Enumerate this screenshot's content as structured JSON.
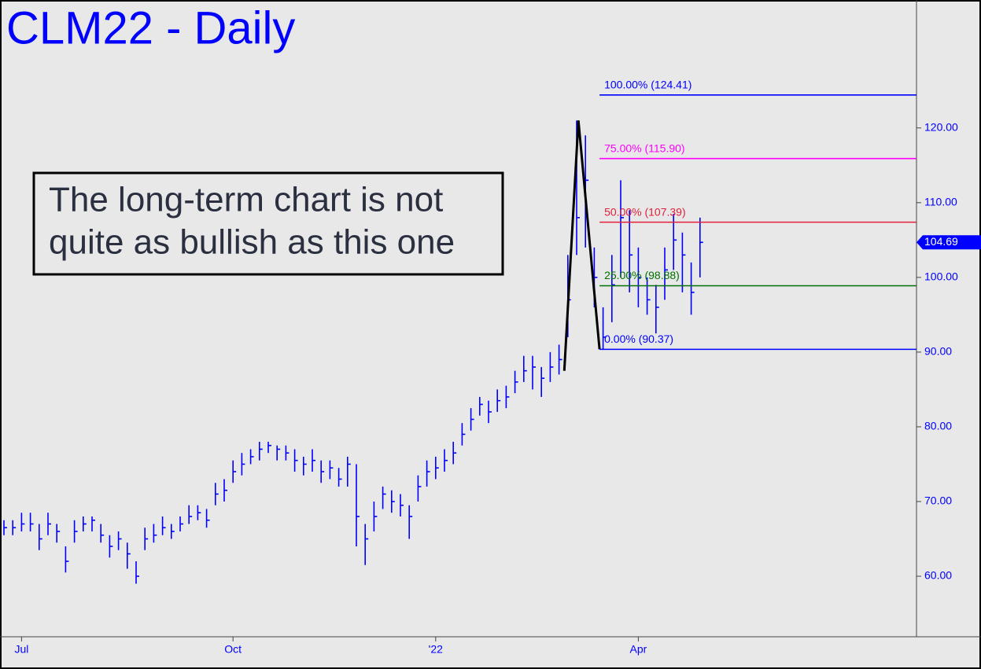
{
  "chart_data": {
    "type": "ohlc",
    "title": "CLM22 - Daily",
    "annotation": [
      "The long-term chart is not",
      "quite as bullish as this one"
    ],
    "categories": [
      null,
      null,
      "Jul",
      null,
      null,
      null,
      null,
      null,
      null,
      null,
      null,
      null,
      null,
      null,
      null,
      null,
      null,
      null,
      null,
      null,
      null,
      null,
      null,
      null,
      null,
      null,
      "Oct",
      null,
      null,
      null,
      null,
      null,
      null,
      null,
      null,
      null,
      null,
      null,
      null,
      null,
      null,
      null,
      null,
      null,
      null,
      null,
      null,
      null,
      null,
      "'22",
      null,
      null,
      null,
      null,
      null,
      null,
      null,
      null,
      null,
      null,
      null,
      null,
      null,
      null,
      null,
      null,
      null,
      null,
      null,
      null,
      null,
      null,
      "Apr",
      null,
      null,
      null,
      null,
      null,
      null,
      null
    ],
    "high": [
      67.5,
      67.5,
      68.5,
      68.5,
      67,
      68.5,
      67,
      64,
      67.5,
      68,
      68,
      67,
      65.5,
      66,
      64.5,
      62,
      66.5,
      67,
      68,
      67,
      68,
      69.5,
      69.5,
      69,
      72.5,
      73,
      75.5,
      76.5,
      77,
      78,
      78,
      77.5,
      77.5,
      77,
      76,
      77,
      75.5,
      75.5,
      74.5,
      76,
      75,
      67,
      70,
      72,
      71.5,
      71,
      69.5,
      73.5,
      75.5,
      76,
      77,
      78,
      80.5,
      82.5,
      84,
      83.5,
      85,
      85.5,
      87.5,
      89.5,
      89.5,
      88,
      90,
      91,
      103,
      121,
      119,
      104,
      96,
      103,
      113,
      109,
      104,
      100,
      99,
      104,
      108.5,
      106,
      102,
      108
    ],
    "low": [
      65.5,
      65.5,
      66,
      66,
      63.5,
      65.5,
      64.5,
      60.5,
      64.5,
      66,
      66,
      64.5,
      62.5,
      63.5,
      61,
      59,
      63.5,
      64.5,
      65.5,
      65,
      66,
      67,
      67.5,
      66.5,
      69.5,
      70,
      72.5,
      73.5,
      75,
      75.5,
      76.5,
      75.5,
      75.5,
      74,
      73.5,
      74,
      72.5,
      73,
      72,
      72,
      64,
      61.5,
      66,
      69,
      68.5,
      68,
      65,
      70,
      72,
      73,
      74,
      75,
      77.5,
      79.5,
      81.5,
      80.5,
      82,
      82.5,
      84.5,
      86,
      85,
      84,
      86,
      87,
      92,
      103,
      104,
      96,
      90.4,
      94,
      100,
      98,
      96,
      95,
      92.5,
      97,
      101,
      98,
      95,
      100
    ],
    "close": [
      66.5,
      66.5,
      67,
      67,
      65,
      67,
      66,
      62,
      66,
      67,
      67.5,
      65.5,
      64,
      65,
      63,
      60,
      65,
      65.5,
      66.5,
      66,
      67,
      68,
      68.5,
      67.5,
      71,
      71.5,
      74,
      75,
      76,
      77,
      77.5,
      77,
      76.5,
      75.5,
      75,
      75.5,
      74,
      74.5,
      73,
      75,
      68,
      65,
      68,
      71,
      70,
      69.5,
      68,
      72,
      74,
      74.5,
      75.5,
      76.5,
      79,
      81,
      83,
      82,
      83.5,
      84,
      86,
      87.5,
      88,
      86.5,
      88,
      89,
      97,
      108,
      113,
      100,
      92,
      99,
      108,
      103,
      100,
      97,
      96,
      101,
      105,
      103,
      98,
      104.69
    ],
    "color": "#0000ff",
    "ylim": [
      51.9,
      136.6
    ],
    "yticks": [
      {
        "value": 60,
        "label": "60.00"
      },
      {
        "value": 70,
        "label": "70.00"
      },
      {
        "value": 80,
        "label": "80.00"
      },
      {
        "value": 90,
        "label": "90.00"
      },
      {
        "value": 100,
        "label": "100.00"
      },
      {
        "value": 110,
        "label": "110.00"
      },
      {
        "value": 120,
        "label": "120.00"
      }
    ],
    "last": 104.69,
    "pattern": {
      "x": [
        63.6,
        65.2,
        67.6
      ],
      "values": [
        87.5,
        121,
        90.37
      ],
      "color": "#000000"
    },
    "levels": [
      {
        "label": "100.00% (124.41)",
        "value": 124.41,
        "color": "#0000ff"
      },
      {
        "label": "75.00% (115.90)",
        "value": 115.9,
        "color": "#ff00ff"
      },
      {
        "label": "50.00% (107.39)",
        "value": 107.39,
        "color": "#e0203a"
      },
      {
        "label": "25.00% (98.88)",
        "value": 98.88,
        "color": "#007000"
      },
      {
        "label": "0.00% (90.37)",
        "value": 90.37,
        "color": "#0000ff"
      }
    ]
  }
}
